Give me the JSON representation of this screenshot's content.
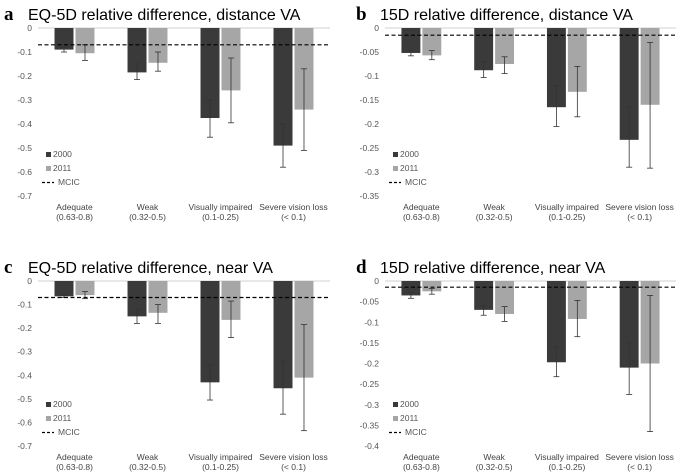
{
  "colors": {
    "series_2000": "#3a3a3a",
    "series_2011": "#a6a6a6",
    "axis": "#d0d0d0",
    "mcic": "#000000",
    "error_bar": "#333333"
  },
  "chart_data": [
    {
      "type": "bar",
      "letter": "a",
      "title": "EQ-5D relative difference, distance VA",
      "categories": [
        [
          "Adequate",
          "(0.63-0.8)"
        ],
        [
          "Weak",
          "(0.32-0.5)"
        ],
        [
          "Visually impaired",
          "(0.1-0.25)"
        ],
        [
          "Severe vision loss",
          "(< 0.1)"
        ]
      ],
      "ylim": [
        -0.7,
        0
      ],
      "yticks": [
        0,
        -0.1,
        -0.2,
        -0.3,
        -0.4,
        -0.5,
        -0.6,
        -0.7
      ],
      "ytick_labels": [
        "0",
        "-0.1",
        "-0.2",
        "-0.3",
        "-0.4",
        "-0.5",
        "-0.6",
        "-0.7"
      ],
      "mcic": -0.07,
      "series": [
        {
          "name": "2000",
          "values": [
            -0.09,
            -0.185,
            -0.375,
            -0.49
          ],
          "err_low": [
            -0.1,
            -0.215,
            -0.455,
            -0.58
          ],
          "err_high": [
            -0.08,
            -0.15,
            -0.3,
            -0.4
          ]
        },
        {
          "name": "2011",
          "values": [
            -0.105,
            -0.145,
            -0.26,
            -0.34
          ],
          "err_low": [
            -0.135,
            -0.18,
            -0.395,
            -0.51
          ],
          "err_high": [
            -0.07,
            -0.1,
            -0.125,
            -0.17
          ]
        }
      ],
      "legend": {
        "entries": [
          "2000",
          "2011",
          "MCIC"
        ],
        "position": "bottom-left"
      }
    },
    {
      "type": "bar",
      "letter": "b",
      "title": "15D relative difference, distance VA",
      "categories": [
        [
          "Adequate",
          "(0.63-0.8)"
        ],
        [
          "Weak",
          "(0.32-0.5)"
        ],
        [
          "Visually impaired",
          "(0.1-0.25)"
        ],
        [
          "Severe vision loss",
          "(< 0.1)"
        ]
      ],
      "ylim": [
        -0.35,
        0
      ],
      "yticks": [
        0,
        -0.05,
        -0.1,
        -0.15,
        -0.2,
        -0.25,
        -0.3,
        -0.35
      ],
      "ytick_labels": [
        "0",
        "-0.05",
        "-0.1",
        "-0.15",
        "-0.2",
        "-0.25",
        "-0.3",
        "-0.35"
      ],
      "mcic": -0.015,
      "series": [
        {
          "name": "2000",
          "values": [
            -0.052,
            -0.088,
            -0.165,
            -0.233
          ],
          "err_low": [
            -0.058,
            -0.103,
            -0.205,
            -0.29
          ],
          "err_high": [
            -0.046,
            -0.07,
            -0.12,
            -0.165
          ]
        },
        {
          "name": "2011",
          "values": [
            -0.057,
            -0.075,
            -0.133,
            -0.16
          ],
          "err_low": [
            -0.066,
            -0.095,
            -0.185,
            -0.292
          ],
          "err_high": [
            -0.047,
            -0.06,
            -0.08,
            -0.03
          ]
        }
      ],
      "legend": {
        "entries": [
          "2000",
          "2011",
          "MCIC"
        ],
        "position": "bottom-left"
      }
    },
    {
      "type": "bar",
      "letter": "c",
      "title": "EQ-5D relative difference, near VA",
      "categories": [
        [
          "Adequate",
          "(0.63-0.8)"
        ],
        [
          "Weak",
          "(0.32-0.5)"
        ],
        [
          "Visually impaired",
          "(0.1-0.25)"
        ],
        [
          "Severe vision loss",
          "(< 0.1)"
        ]
      ],
      "ylim": [
        -0.7,
        0
      ],
      "yticks": [
        0,
        -0.1,
        -0.2,
        -0.3,
        -0.4,
        -0.5,
        -0.6,
        -0.7
      ],
      "ytick_labels": [
        "0",
        "-0.1",
        "-0.2",
        "-0.3",
        "-0.4",
        "-0.5",
        "-0.6",
        "-0.7"
      ],
      "mcic": -0.07,
      "series": [
        {
          "name": "2000",
          "values": [
            -0.065,
            -0.15,
            -0.43,
            -0.455
          ],
          "err_low": [
            -0.07,
            -0.18,
            -0.505,
            -0.565
          ],
          "err_high": [
            -0.06,
            -0.12,
            -0.355,
            -0.34
          ]
        },
        {
          "name": "2011",
          "values": [
            -0.06,
            -0.135,
            -0.165,
            -0.41
          ],
          "err_low": [
            -0.075,
            -0.18,
            -0.24,
            -0.635
          ],
          "err_high": [
            -0.045,
            -0.1,
            -0.085,
            -0.185
          ]
        }
      ],
      "legend": {
        "entries": [
          "2000",
          "2011",
          "MCIC"
        ],
        "position": "bottom-left"
      }
    },
    {
      "type": "bar",
      "letter": "d",
      "title": "15D relative difference, near VA",
      "categories": [
        [
          "Adequate",
          "(0.63-0.8)"
        ],
        [
          "Weak",
          "(0.32-0.5)"
        ],
        [
          "Visually impaired",
          "(0.1-0.25)"
        ],
        [
          "Severe vision loss",
          "(< 0.1)"
        ]
      ],
      "ylim": [
        -0.4,
        0
      ],
      "yticks": [
        0,
        -0.05,
        -0.1,
        -0.15,
        -0.2,
        -0.25,
        -0.3,
        -0.35,
        -0.4
      ],
      "ytick_labels": [
        "0",
        "-0.05",
        "-0.1",
        "-0.15",
        "-0.2",
        "-0.25",
        "-0.3",
        "-0.35",
        "-0.4"
      ],
      "mcic": -0.015,
      "series": [
        {
          "name": "2000",
          "values": [
            -0.035,
            -0.07,
            -0.197,
            -0.21
          ],
          "err_low": [
            -0.042,
            -0.083,
            -0.232,
            -0.275
          ],
          "err_high": [
            -0.028,
            -0.06,
            -0.16,
            -0.15
          ]
        },
        {
          "name": "2011",
          "values": [
            -0.025,
            -0.08,
            -0.092,
            -0.2
          ],
          "err_low": [
            -0.032,
            -0.098,
            -0.135,
            -0.365
          ],
          "err_high": [
            -0.018,
            -0.062,
            -0.047,
            -0.035
          ]
        }
      ],
      "legend": {
        "entries": [
          "2000",
          "2011",
          "MCIC"
        ],
        "position": "bottom-left"
      }
    }
  ]
}
